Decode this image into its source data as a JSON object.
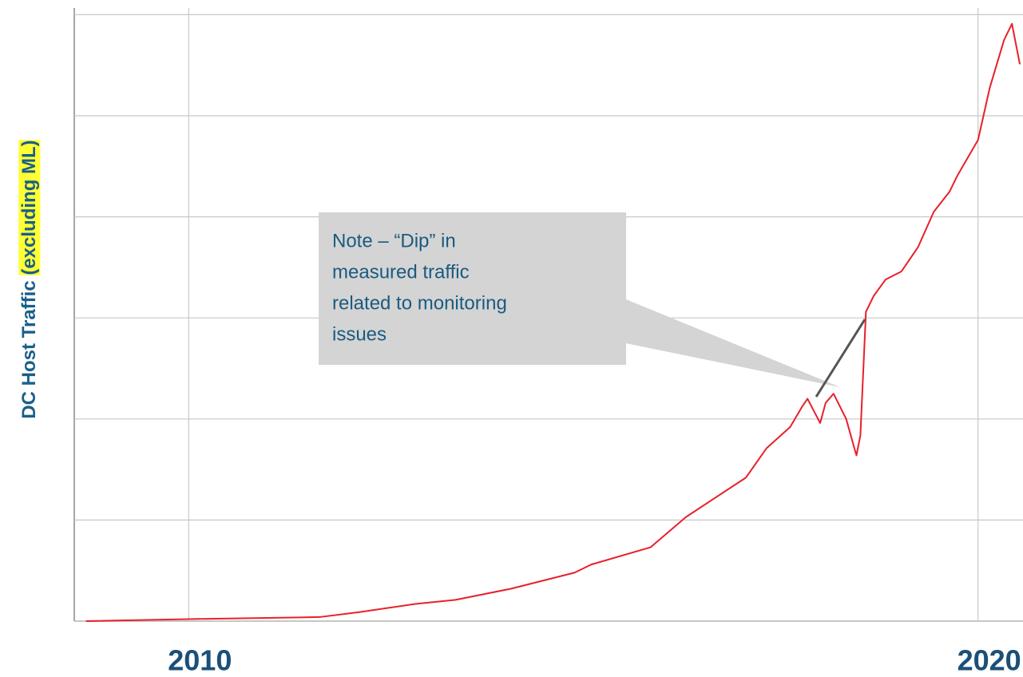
{
  "chart_data": {
    "type": "line",
    "y_label": "DC Host Traffic",
    "y_label_highlight": "(excluding ML)",
    "annotation": [
      "Note – “Dip” in",
      "measured traffic",
      "related to monitoring",
      "issues"
    ],
    "x": [
      2008.7,
      2010.0,
      2011.66,
      2012.17,
      2012.87,
      2013.38,
      2014.08,
      2014.89,
      2015.1,
      2015.85,
      2016.3,
      2017.06,
      2017.32,
      2017.62,
      2017.77,
      2017.84,
      2017.92,
      2018.0,
      2018.07,
      2018.17,
      2018.33,
      2018.43,
      2018.46,
      2018.51,
      2018.58,
      2018.68,
      2018.83,
      2019.03,
      2019.24,
      2019.44,
      2019.64,
      2019.74,
      2020.0,
      2020.15,
      2020.33,
      2020.43,
      2020.53
    ],
    "series": [
      {
        "color": "#e8202a",
        "values": [
          0,
          0.02,
          0.04,
          0.09,
          0.17,
          0.21,
          0.32,
          0.48,
          0.56,
          0.73,
          1.03,
          1.42,
          1.71,
          1.92,
          2.12,
          2.2,
          2.08,
          1.96,
          2.16,
          2.25,
          2.0,
          1.72,
          1.64,
          1.84,
          3.06,
          3.22,
          3.38,
          3.46,
          3.7,
          4.05,
          4.25,
          4.41,
          4.76,
          5.28,
          5.75,
          5.91,
          5.51
        ]
      }
    ],
    "xlim": [
      2008.55,
      2020.57
    ],
    "xticks": [
      2010,
      2020
    ],
    "ylim": [
      0,
      6
    ],
    "yticks": [
      0,
      1,
      2,
      3,
      4,
      5,
      6
    ],
    "ytick_labels": false,
    "grid": true
  }
}
